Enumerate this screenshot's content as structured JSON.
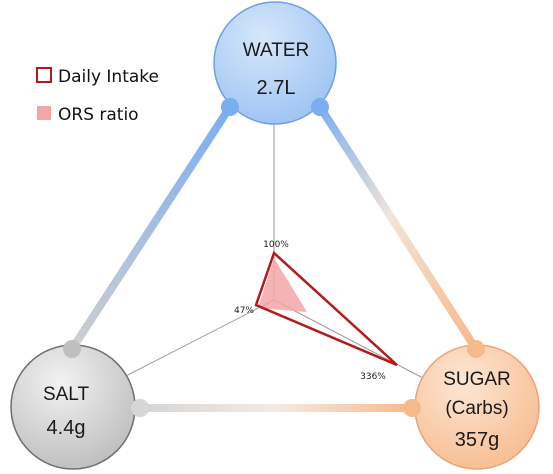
{
  "legend": {
    "daily_intake_label": "Daily Intake",
    "ors_ratio_label": "ORS ratio"
  },
  "nodes": {
    "water": {
      "name": "WATER",
      "value": "2.7L",
      "color": "#7fb2f0"
    },
    "salt": {
      "name": "SALT",
      "value": "4.4g",
      "color": "#b0b0b0"
    },
    "sugar": {
      "name_line1": "SUGAR",
      "name_line2": "(Carbs)",
      "value": "357g",
      "color": "#f6b98a"
    }
  },
  "percent_labels": {
    "water": "100%",
    "salt": "47%",
    "sugar": "336%"
  },
  "colors": {
    "daily_intake_stroke": "#b31b1b",
    "ors_fill": "#f4a6a6"
  }
}
